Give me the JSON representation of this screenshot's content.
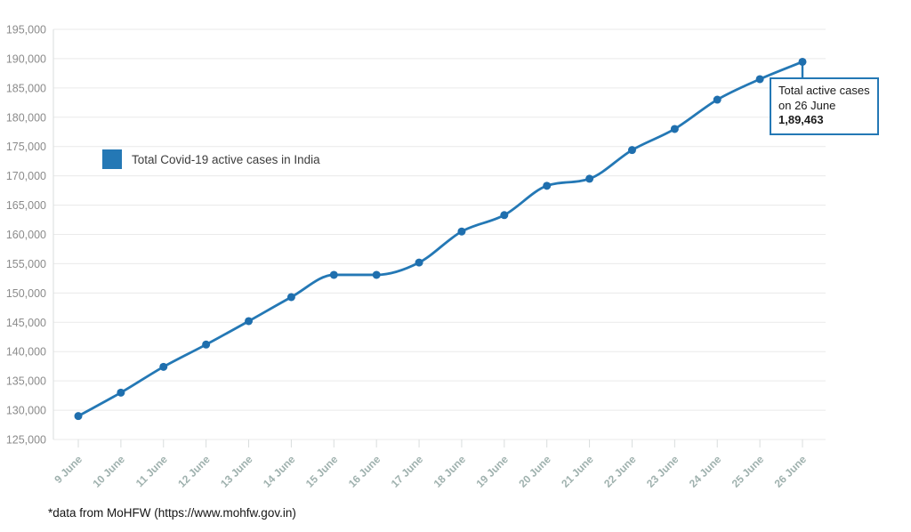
{
  "chart_data": {
    "type": "line",
    "title": "",
    "x": [
      "9 June",
      "10 June",
      "11 June",
      "12 June",
      "13 June",
      "14 June",
      "15 June",
      "16 June",
      "17 June",
      "18 June",
      "19 June",
      "20 June",
      "21 June",
      "22 June",
      "23 June",
      "24 June",
      "25 June",
      "26 June"
    ],
    "series": [
      {
        "name": "Total Covid-19 active cases in India",
        "values": [
          129000,
          133000,
          137400,
          141200,
          145200,
          149300,
          153100,
          153100,
          155200,
          160500,
          163300,
          168300,
          169500,
          174400,
          178000,
          183000,
          186500,
          189463
        ]
      }
    ],
    "xlabel": "",
    "ylabel": "",
    "ylim": [
      125000,
      195000
    ],
    "ytick_step": 5000,
    "grid": true,
    "legend_position": "inside-top-left",
    "marker": "circle"
  },
  "annotation": {
    "line1": "Total active cases",
    "line2": "on 26 June",
    "value": "1,89,463"
  },
  "footer": {
    "text": "*data from MoHFW (https://www.mohfw.gov.in)"
  },
  "colors": {
    "line": "#2478b5",
    "marker": "#1f6fae",
    "grid": "#eaeaea",
    "axis": "#d9dddd",
    "y_labels": "#8b8b8b",
    "x_labels": "#9fb1ae",
    "annotation_border": "#2478b5"
  }
}
